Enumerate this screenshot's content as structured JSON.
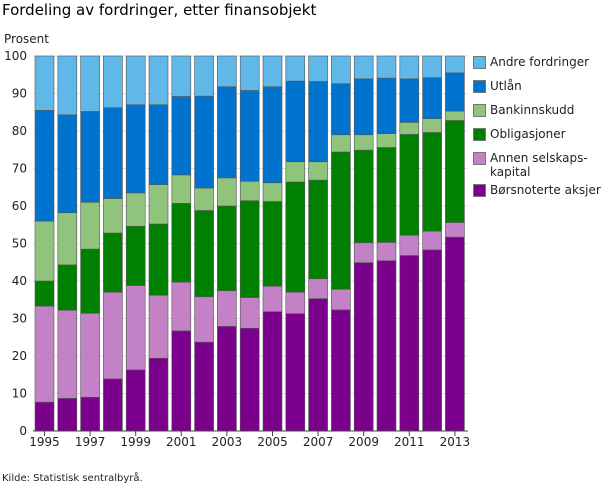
{
  "chart_data": {
    "type": "bar",
    "stacked": true,
    "title": "Fordeling av fordringer, etter finansobjekt",
    "ylabel": "Prosent",
    "xlabel": "",
    "ylim": [
      0,
      100
    ],
    "yticks": [
      0,
      10,
      20,
      30,
      40,
      50,
      60,
      70,
      80,
      90,
      100
    ],
    "grid": true,
    "legend_position": "right",
    "categories": [
      "1995",
      "1996",
      "1997",
      "1998",
      "1999",
      "2000",
      "2001",
      "2002",
      "2003",
      "2004",
      "2005",
      "2006",
      "2007",
      "2008",
      "2009",
      "2010",
      "2011",
      "2012",
      "2013"
    ],
    "xtick_labels": [
      "1995",
      "1997",
      "1999",
      "2001",
      "2003",
      "2005",
      "2007",
      "2009",
      "2011",
      "2013"
    ],
    "series": [
      {
        "name": "Børsnoterte aksjer",
        "color": "#7b008b",
        "values": [
          7.7,
          8.7,
          9.0,
          13.9,
          16.3,
          19.4,
          26.7,
          23.7,
          27.9,
          27.4,
          31.8,
          31.3,
          35.3,
          32.3,
          44.9,
          45.4,
          46.8,
          48.3,
          51.7
        ]
      },
      {
        "name": "Annen selskaps-kapital",
        "color": "#c382c6",
        "values": [
          25.6,
          23.5,
          22.4,
          23.1,
          22.5,
          16.8,
          13.0,
          12.1,
          9.5,
          8.2,
          6.8,
          5.7,
          5.3,
          5.5,
          5.3,
          4.9,
          5.4,
          5.0,
          3.9
        ]
      },
      {
        "name": "Obligasjoner",
        "color": "#008000",
        "values": [
          6.7,
          12.1,
          17.1,
          15.8,
          15.8,
          19.0,
          21.0,
          23.0,
          22.6,
          25.8,
          22.6,
          29.4,
          26.3,
          36.6,
          24.7,
          25.3,
          26.9,
          26.3,
          27.2
        ]
      },
      {
        "name": "Bankinnskudd",
        "color": "#90c47c",
        "values": [
          16.0,
          13.9,
          12.5,
          9.2,
          8.9,
          10.5,
          7.6,
          6.0,
          7.5,
          5.2,
          5.0,
          5.4,
          4.9,
          4.6,
          4.1,
          3.7,
          3.2,
          3.7,
          2.5
        ]
      },
      {
        "name": "Utlån",
        "color": "#0073cf",
        "values": [
          29.5,
          26.1,
          24.2,
          24.2,
          23.5,
          21.3,
          20.9,
          24.5,
          24.3,
          24.2,
          25.6,
          21.5,
          21.4,
          13.6,
          14.9,
          14.8,
          11.6,
          10.9,
          10.2
        ]
      },
      {
        "name": "Andre fordringer",
        "color": "#60b8e8",
        "values": [
          14.5,
          15.7,
          14.8,
          13.8,
          13.0,
          13.0,
          10.8,
          10.7,
          8.2,
          9.2,
          8.2,
          6.7,
          6.8,
          7.4,
          6.1,
          5.9,
          6.1,
          5.8,
          4.5
        ]
      }
    ],
    "legend": [
      {
        "label": "Andre fordringer",
        "color": "#60b8e8"
      },
      {
        "label": "Utlån",
        "color": "#0073cf"
      },
      {
        "label": "Bankinnskudd",
        "color": "#90c47c"
      },
      {
        "label": "Obligasjoner",
        "color": "#008000"
      },
      {
        "label": "Annen selskaps-\nkapital",
        "color": "#c382c6"
      },
      {
        "label": "Børsnoterte aksjer",
        "color": "#7b008b"
      }
    ]
  },
  "source": "Kilde: Statistisk sentralbyrå."
}
